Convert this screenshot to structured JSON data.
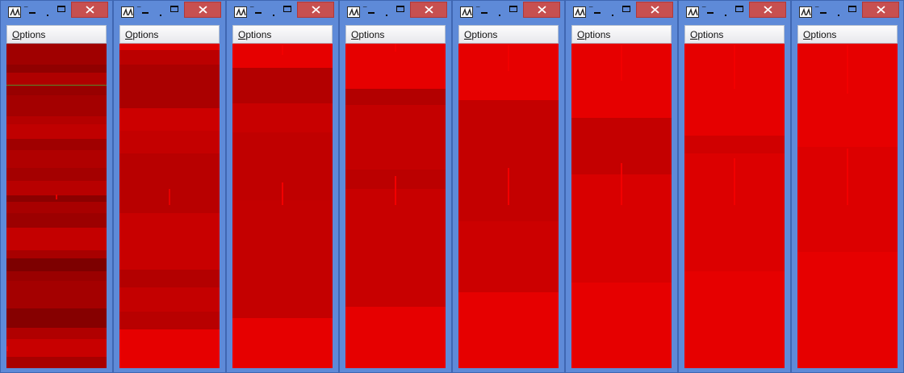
{
  "menu": {
    "options_mnemonic": "O",
    "options_rest": "ptions"
  },
  "icons": {
    "app": "app-logo-icon",
    "minimize": "minimize-icon",
    "restore": "restore-icon",
    "maximize": "maximize-icon",
    "close": "close-icon"
  },
  "colors": {
    "title_bar": "#5e8ad8",
    "close_button": "#c75050",
    "menu_bar": "#f0f0f0",
    "canvas_dark": "#1b1b3a",
    "red_bright": "#e60000",
    "red_mid": "#cc0000",
    "red_dark": "#a80000",
    "red_deep": "#7d0000"
  },
  "windows": [
    {
      "id": "w1",
      "canvas": "heatmap-canvas"
    },
    {
      "id": "w2",
      "canvas": "heatmap-canvas"
    },
    {
      "id": "w3",
      "canvas": "heatmap-canvas"
    },
    {
      "id": "w4",
      "canvas": "heatmap-canvas"
    },
    {
      "id": "w5",
      "canvas": "heatmap-canvas"
    },
    {
      "id": "w6",
      "canvas": "heatmap-canvas"
    },
    {
      "id": "w7",
      "canvas": "heatmap-canvas"
    },
    {
      "id": "w8",
      "canvas": "heatmap-canvas"
    }
  ]
}
